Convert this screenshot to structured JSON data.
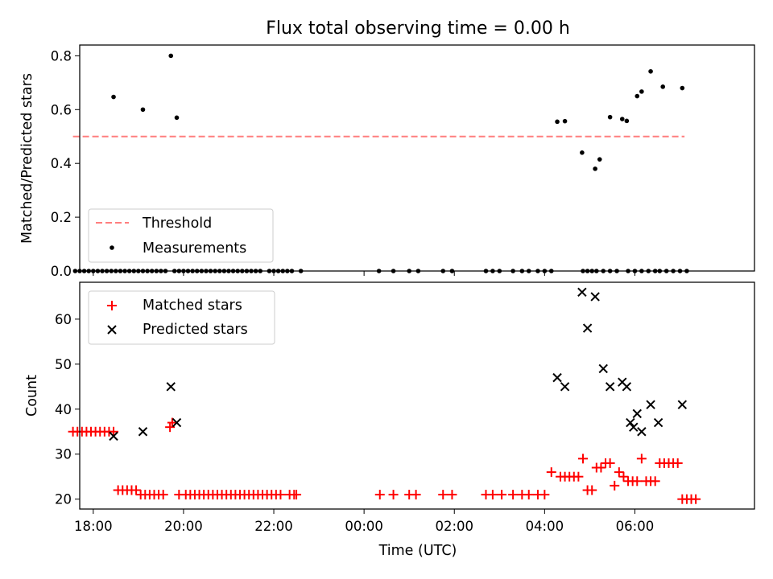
{
  "chart_data": [
    {
      "type": "scatter",
      "title": "Flux total observing time = 0.00 h",
      "xlabel": "",
      "ylabel": "Matched/Predicted stars",
      "xlim_hours": [
        -6.3,
        8.65
      ],
      "ylim": [
        0,
        0.84
      ],
      "yticks": [
        0.0,
        0.2,
        0.4,
        0.6,
        0.8
      ],
      "ytick_labels": [
        "0.0",
        "0.2",
        "0.4",
        "0.6",
        "0.8"
      ],
      "legend_position": "lower-left",
      "threshold": {
        "name": "Threshold",
        "value": 0.5,
        "x_range_hours": [
          -6.45,
          7.1
        ],
        "color": "#ff7f7f"
      },
      "series": [
        {
          "name": "Measurements",
          "color": "#000000",
          "x_hours": [
            -5.55,
            -4.9,
            -4.28,
            -4.15,
            4.28,
            4.45,
            4.83,
            5.12,
            5.22,
            5.45,
            5.72,
            5.82,
            6.05,
            6.15,
            6.35,
            6.62,
            7.05
          ],
          "y": [
            0.647,
            0.6,
            0.8,
            0.57,
            0.555,
            0.557,
            0.44,
            0.38,
            0.415,
            0.572,
            0.565,
            0.558,
            0.65,
            0.667,
            0.742,
            0.685,
            0.68
          ]
        },
        {
          "name": "",
          "color": "#000000",
          "x_hours": [
            -6.4,
            -6.3,
            -6.2,
            -6.1,
            -6.0,
            -5.9,
            -5.8,
            -5.7,
            -5.6,
            -5.5,
            -5.4,
            -5.3,
            -5.2,
            -5.1,
            -5.0,
            -4.9,
            -4.8,
            -4.7,
            -4.6,
            -4.5,
            -4.4,
            -4.2,
            -4.1,
            -4.0,
            -3.9,
            -3.8,
            -3.7,
            -3.6,
            -3.5,
            -3.4,
            -3.3,
            -3.2,
            -3.1,
            -3.0,
            -2.9,
            -2.8,
            -2.7,
            -2.6,
            -2.5,
            -2.4,
            -2.3,
            -2.1,
            -2.0,
            -1.9,
            -1.8,
            -1.7,
            -1.6,
            -1.4,
            0.33,
            0.65,
            1.0,
            1.2,
            1.75,
            1.95,
            2.7,
            2.85,
            3.0,
            3.3,
            3.5,
            3.65,
            3.85,
            4.0,
            4.15,
            4.85,
            4.95,
            5.05,
            5.15,
            5.3,
            5.45,
            5.6,
            5.85,
            6.0,
            6.15,
            6.3,
            6.45,
            6.55,
            6.7,
            6.85,
            7.0,
            7.15
          ],
          "y": [
            0,
            0,
            0,
            0,
            0,
            0,
            0,
            0,
            0,
            0,
            0,
            0,
            0,
            0,
            0,
            0,
            0,
            0,
            0,
            0,
            0,
            0,
            0,
            0,
            0,
            0,
            0,
            0,
            0,
            0,
            0,
            0,
            0,
            0,
            0,
            0,
            0,
            0,
            0,
            0,
            0,
            0,
            0,
            0,
            0,
            0,
            0,
            0,
            0,
            0,
            0,
            0,
            0,
            0,
            0,
            0,
            0,
            0,
            0,
            0,
            0,
            0,
            0,
            0,
            0,
            0,
            0,
            0,
            0,
            0,
            0,
            0,
            0,
            0,
            0,
            0,
            0,
            0,
            0,
            0
          ]
        }
      ]
    },
    {
      "type": "scatter",
      "title": "",
      "xlabel": "Time (UTC)",
      "ylabel": "Count",
      "xlim_hours": [
        -6.3,
        8.65
      ],
      "ylim": [
        17.8,
        68.2
      ],
      "yticks": [
        20,
        30,
        40,
        50,
        60
      ],
      "ytick_labels": [
        "20",
        "30",
        "40",
        "50",
        "60"
      ],
      "xticks_hours": [
        -6,
        -4,
        -2,
        0,
        2,
        4,
        6
      ],
      "xtick_labels": [
        "18:00",
        "20:00",
        "22:00",
        "00:00",
        "02:00",
        "04:00",
        "06:00"
      ],
      "legend_position": "upper-left",
      "series": [
        {
          "name": "Matched stars",
          "marker": "plus",
          "color": "#ff0000",
          "x_hours": [
            -6.45,
            -6.35,
            -6.25,
            -6.15,
            -6.05,
            -5.95,
            -5.85,
            -5.75,
            -5.65,
            -5.55,
            -5.45,
            -5.35,
            -5.25,
            -5.15,
            -5.05,
            -4.95,
            -4.85,
            -4.75,
            -4.65,
            -4.55,
            -4.45,
            -4.3,
            -4.25,
            -4.1,
            -3.95,
            -3.85,
            -3.75,
            -3.65,
            -3.55,
            -3.45,
            -3.35,
            -3.25,
            -3.15,
            -3.05,
            -2.95,
            -2.85,
            -2.75,
            -2.65,
            -2.55,
            -2.45,
            -2.35,
            -2.25,
            -2.15,
            -2.05,
            -1.95,
            -1.85,
            -1.65,
            -1.55,
            -1.5,
            0.35,
            0.65,
            1.0,
            1.15,
            1.75,
            1.95,
            2.7,
            2.85,
            3.05,
            3.3,
            3.5,
            3.65,
            3.85,
            4.0,
            4.15,
            4.35,
            4.45,
            4.55,
            4.65,
            4.75,
            4.85,
            4.95,
            5.05,
            5.15,
            5.25,
            5.35,
            5.45,
            5.55,
            5.65,
            5.75,
            5.85,
            5.95,
            6.05,
            6.15,
            6.25,
            6.35,
            6.45,
            6.55,
            6.65,
            6.75,
            6.85,
            6.95,
            7.05,
            7.15,
            7.25,
            7.35
          ],
          "y": [
            35,
            35,
            35,
            35,
            35,
            35,
            35,
            35,
            35,
            35,
            22,
            22,
            22,
            22,
            22,
            21,
            21,
            21,
            21,
            21,
            21,
            36,
            37,
            21,
            21,
            21,
            21,
            21,
            21,
            21,
            21,
            21,
            21,
            21,
            21,
            21,
            21,
            21,
            21,
            21,
            21,
            21,
            21,
            21,
            21,
            21,
            21,
            21,
            21,
            21,
            21,
            21,
            21,
            21,
            21,
            21,
            21,
            21,
            21,
            21,
            21,
            21,
            21,
            26,
            25,
            25,
            25,
            25,
            25,
            29,
            22,
            22,
            27,
            27,
            28,
            28,
            23,
            26,
            25,
            24,
            24,
            24,
            29,
            24,
            24,
            24,
            28,
            28,
            28,
            28,
            28,
            20,
            20,
            20,
            20
          ]
        },
        {
          "name": "Predicted stars",
          "marker": "x",
          "color": "#000000",
          "x_hours": [
            -5.55,
            -4.9,
            -4.28,
            -4.15,
            4.28,
            4.45,
            4.83,
            4.95,
            5.12,
            5.3,
            5.45,
            5.72,
            5.82,
            5.9,
            5.97,
            6.05,
            6.15,
            6.35,
            6.52,
            7.05
          ],
          "y": [
            34,
            35,
            45,
            37,
            47,
            45,
            66,
            58,
            65,
            49,
            45,
            46,
            45,
            37,
            36,
            39,
            35,
            41,
            37,
            41
          ]
        }
      ]
    }
  ]
}
